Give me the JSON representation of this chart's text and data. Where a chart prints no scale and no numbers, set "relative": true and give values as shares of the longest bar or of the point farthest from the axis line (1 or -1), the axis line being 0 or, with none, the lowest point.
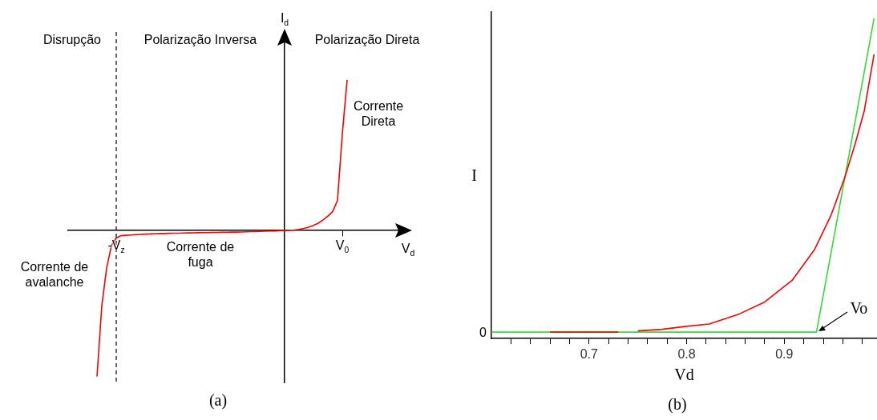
{
  "chart_data": [
    {
      "type": "line",
      "relative": true,
      "xlabel": "V$_{d}$",
      "ylabel": "I$_{d}$",
      "categories": [
        null,
        null,
        null,
        null,
        null,
        null,
        null,
        null,
        null,
        null,
        "-V$_{z}$",
        null,
        null,
        null,
        null,
        null,
        null,
        null,
        null,
        null,
        null,
        null,
        null,
        null,
        null,
        null,
        null,
        null,
        null,
        null,
        null,
        null,
        null,
        null,
        null,
        null,
        null,
        null,
        null,
        null,
        null,
        null,
        null,
        null,
        null,
        null,
        null,
        null,
        null,
        null,
        null,
        null,
        null,
        null,
        null,
        null,
        null,
        "V$_{0}$",
        null,
        null,
        null,
        null,
        null,
        null,
        null,
        null,
        null,
        null,
        null,
        null,
        null
      ],
      "series": [
        {
          "color": "#ff0000",
          "values": [
            null,
            null,
            null,
            null,
            null,
            null,
            -0.97,
            -0.5,
            -0.25,
            -0.1,
            -0.05,
            -0.034,
            -0.032,
            -0.03,
            -0.028,
            -0.026,
            -0.024,
            -0.023,
            -0.021,
            -0.02,
            -0.02,
            -0.019,
            -0.018,
            -0.018,
            -0.017,
            -0.016,
            -0.016,
            -0.015,
            -0.014,
            -0.014,
            -0.013,
            -0.013,
            -0.012,
            -0.012,
            -0.011,
            -0.011,
            -0.01,
            -0.009,
            -0.008,
            -0.007,
            -0.006,
            -0.005,
            -0.004,
            -0.003,
            -0.001,
            0,
            0.001,
            0.003,
            0.007,
            0.014,
            0.022,
            0.034,
            0.048,
            0.07,
            0.095,
            0.126,
            0.2,
            0.64,
            1,
            null,
            null,
            null,
            null,
            null,
            null,
            null,
            null,
            null,
            null,
            null,
            null
          ]
        }
      ],
      "ref_lines": [
        {
          "axis": "x",
          "value": "-V$_{z}$",
          "color": "#000000",
          "line_style": "dashed"
        }
      ],
      "annotations": [
        "Disrupção",
        "Polarização Inversa",
        "Polarização Direta",
        "Corrente Direta",
        "Corrente de fuga",
        "Corrente de avalanche",
        "(a)"
      ],
      "marker": "none",
      "grid": false,
      "legend": false
    },
    {
      "type": "line",
      "relative": true,
      "xlabel": "Vd",
      "ylabel": "I",
      "xlim": [
        0.6,
        0.995
      ],
      "xticks": [
        {
          "value": 0.62,
          "label": null
        },
        {
          "value": 0.64,
          "label": null
        },
        {
          "value": 0.66,
          "label": null
        },
        {
          "value": 0.68,
          "label": null
        },
        0.7,
        {
          "value": 0.72,
          "label": null
        },
        {
          "value": 0.74,
          "label": null
        },
        {
          "value": 0.76,
          "label": null
        },
        {
          "value": 0.78,
          "label": null
        },
        0.8,
        {
          "value": 0.82,
          "label": null
        },
        {
          "value": 0.84,
          "label": null
        },
        {
          "value": 0.86,
          "label": null
        },
        {
          "value": 0.88,
          "label": null
        },
        0.9,
        {
          "value": 0.92,
          "label": null
        },
        {
          "value": 0.94,
          "label": null
        },
        {
          "value": 0.96,
          "label": null
        },
        {
          "value": 0.98,
          "label": null
        }
      ],
      "series": [
        {
          "color": "#ff0000",
          "x": [
            0.66,
            0.73,
            0.74,
            0.75,
            0.775,
            0.798,
            0.823,
            0.854,
            0.88,
            0.908,
            0.931,
            0.948,
            0.962,
            0.973,
            0.982,
            0.992
          ],
          "values": [
            0,
            0,
            null,
            0.004,
            0.009,
            0.018,
            0.026,
            0.058,
            0.096,
            0.165,
            0.263,
            0.373,
            0.493,
            0.604,
            0.706,
            0.885
          ]
        },
        {
          "color": "#33dd33",
          "x": [
            0.6,
            0.933,
            0.992
          ],
          "values": [
            0,
            0,
            1
          ]
        }
      ],
      "annotations": [
        {
          "text": "Vo",
          "x": 0.933,
          "y": 0
        },
        {
          "text": "0",
          "x": 0.6,
          "y": 0
        },
        "(b)"
      ],
      "marker": "none",
      "grid": false,
      "legend": false
    }
  ]
}
